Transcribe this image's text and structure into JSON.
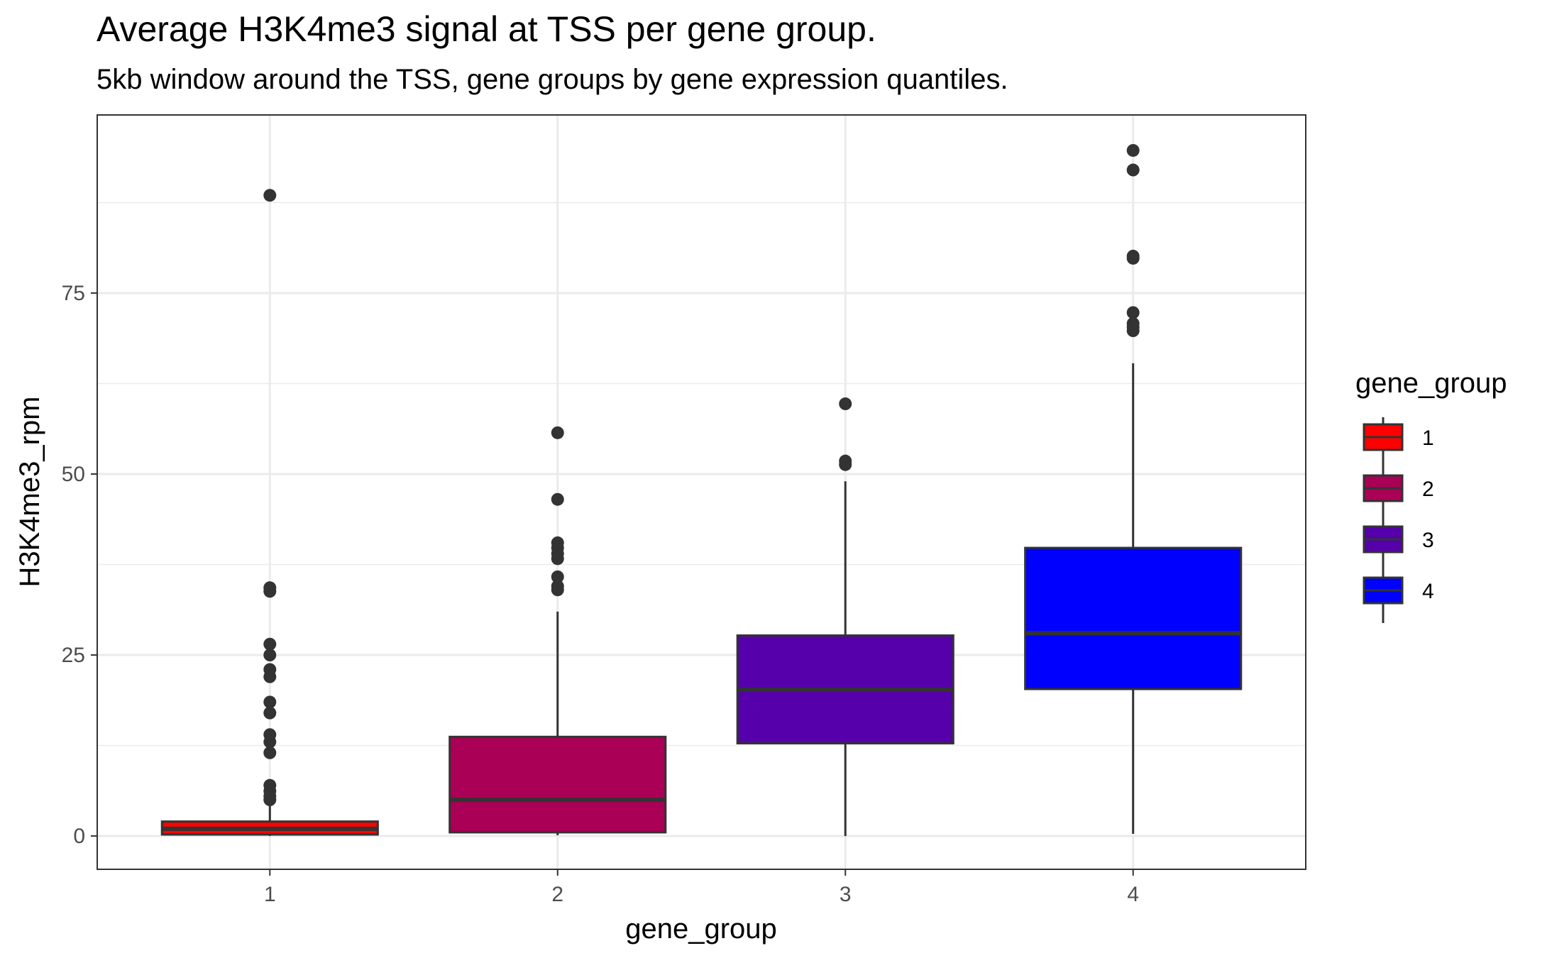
{
  "chart_data": {
    "type": "box",
    "title": "Average H3K4me3 signal at TSS per gene group.",
    "subtitle": "5kb window around the TSS, gene groups by gene expression quantiles.",
    "xlabel": "gene_group",
    "ylabel": "H3K4me3_rpm",
    "categories": [
      "1",
      "2",
      "3",
      "4"
    ],
    "y_ticks": [
      0,
      25,
      50,
      75
    ],
    "y_tick_labels": [
      "0",
      "25",
      "50",
      "75"
    ],
    "ylim": [
      -4.6,
      99.6
    ],
    "grid": true,
    "legend": {
      "title": "gene_group",
      "position": "right",
      "entries": [
        "1",
        "2",
        "3",
        "4"
      ]
    },
    "series": [
      {
        "category": "1",
        "color": "#FF0000",
        "whisker_low": 0.0,
        "q1": 0.2,
        "median": 1.0,
        "q3": 2.0,
        "whisker_high": 4.6,
        "outliers": [
          5.0,
          5.5,
          6.2,
          7.0,
          11.5,
          13.0,
          14.0,
          17.0,
          18.5,
          22.0,
          23.0,
          25.0,
          26.5,
          33.8,
          34.3,
          88.5
        ]
      },
      {
        "category": "2",
        "color": "#AA0055",
        "whisker_low": 0.1,
        "q1": 0.5,
        "median": 5.0,
        "q3": 13.7,
        "whisker_high": 31.0,
        "outliers": [
          34.0,
          34.5,
          35.8,
          38.3,
          39.0,
          39.8,
          40.5,
          46.5,
          55.7
        ]
      },
      {
        "category": "3",
        "color": "#5500AA",
        "whisker_low": 0.0,
        "q1": 12.8,
        "median": 20.2,
        "q3": 27.7,
        "whisker_high": 49.0,
        "outliers": [
          51.3,
          51.8,
          59.7
        ]
      },
      {
        "category": "4",
        "color": "#0000FF",
        "whisker_low": 0.3,
        "q1": 20.3,
        "median": 28.0,
        "q3": 39.8,
        "whisker_high": 65.3,
        "outliers": [
          69.8,
          70.3,
          70.8,
          72.3,
          79.8,
          80.1,
          92.0,
          94.7
        ]
      }
    ]
  }
}
